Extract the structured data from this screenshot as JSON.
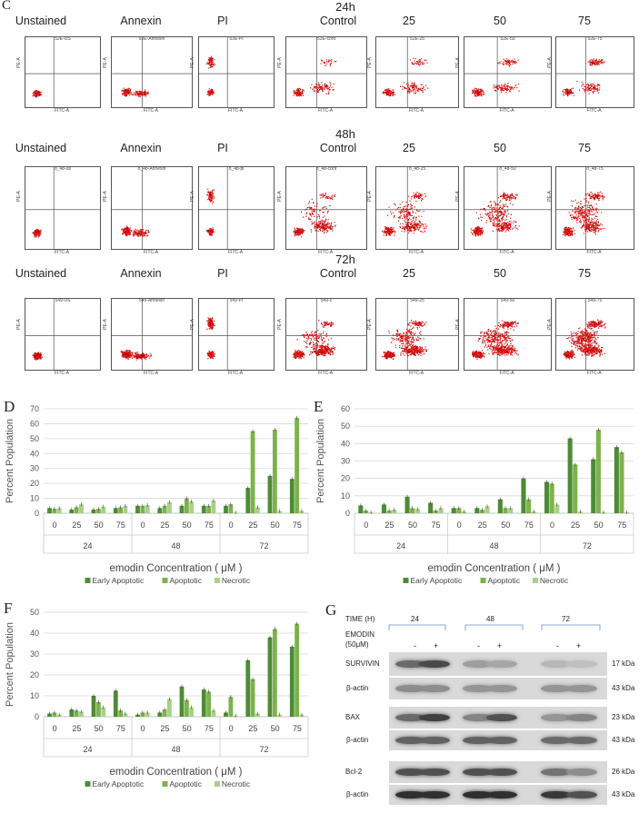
{
  "panel_c": {
    "label": "C",
    "time_rows": [
      {
        "time": "24h",
        "headers": [
          "Unstained",
          "Annexin",
          "PI",
          "Control",
          "25",
          "50",
          "75"
        ],
        "titles": [
          "52E-US",
          "52E-Annexin",
          "52E-PI",
          "52E-cont",
          "52E-25",
          "52E-50",
          "52E-75"
        ]
      },
      {
        "time": "48h",
        "headers": [
          "Unstained",
          "Annexin",
          "PI",
          "Control",
          "25",
          "50",
          "75"
        ],
        "titles": [
          "o_48-us",
          "o_48-Annexin",
          "o_48-pi",
          "o_48-cont",
          "o_48-25",
          "o_48-50",
          "o_48-75"
        ]
      },
      {
        "time": "72h",
        "headers": [
          "Unstained",
          "Annexin",
          "PI",
          "Control",
          "25",
          "50",
          "75"
        ],
        "titles": [
          "549-US",
          "549-Annexin",
          "549-PI",
          "549-c",
          "549-25",
          "549-50",
          "549-75"
        ]
      }
    ],
    "x_axis": "FITC-A",
    "y_axis": "PE-A"
  },
  "chart_data": [
    {
      "id": "D",
      "type": "bar",
      "label": "D",
      "ylabel": "Percent Population",
      "xlabel": "emodin Concentration ( μM )",
      "ylim": [
        0,
        70
      ],
      "ticks": [
        0,
        10,
        20,
        30,
        40,
        50,
        60,
        70
      ],
      "categories": [
        "0",
        "25",
        "50",
        "75",
        "0",
        "25",
        "50",
        "75",
        "0",
        "25",
        "50",
        "75"
      ],
      "groups": [
        "24",
        "48",
        "72"
      ],
      "series": [
        {
          "name": "Early Apoptotic",
          "color": "#4e8b37",
          "values": [
            3.5,
            2.5,
            2.5,
            3.5,
            5,
            3.5,
            5,
            5,
            5,
            17,
            25,
            23
          ]
        },
        {
          "name": "Apoptotic",
          "color": "#7cb34a",
          "values": [
            3,
            4,
            3,
            4,
            5,
            5,
            10,
            5,
            6,
            55,
            56,
            64
          ]
        },
        {
          "name": "Necrotic",
          "color": "#a9cf8a",
          "values": [
            3.5,
            6,
            4.5,
            5,
            5.5,
            7.5,
            8,
            8.5,
            0.5,
            4,
            1.5,
            1.5
          ]
        }
      ]
    },
    {
      "id": "E",
      "type": "bar",
      "label": "E",
      "ylabel": "Percent Population",
      "xlabel": "emodin Concentration ( μM )",
      "ylim": [
        0,
        60
      ],
      "ticks": [
        0,
        10,
        20,
        30,
        40,
        50,
        60
      ],
      "categories": [
        "0",
        "25",
        "50",
        "75",
        "0",
        "25",
        "50",
        "75",
        "0",
        "25",
        "50",
        "75"
      ],
      "groups": [
        "24",
        "48",
        "72"
      ],
      "series": [
        {
          "name": "Early Apoptotic",
          "color": "#4e8b37",
          "values": [
            4.5,
            5,
            9.5,
            6,
            3,
            3,
            8,
            20,
            18,
            43,
            31,
            38
          ]
        },
        {
          "name": "Apoptotic",
          "color": "#7cb34a",
          "values": [
            1.5,
            1.5,
            3,
            1.5,
            3,
            2,
            3,
            8,
            17,
            28,
            48,
            35
          ]
        },
        {
          "name": "Necrotic",
          "color": "#a9cf8a",
          "values": [
            0.5,
            2,
            2.5,
            3,
            1,
            4,
            3,
            1,
            5,
            1,
            0.5,
            0.5
          ]
        }
      ]
    },
    {
      "id": "F",
      "type": "bar",
      "label": "F",
      "ylabel": "Percent Population",
      "xlabel": "emodin Concentration ( μM )",
      "ylim": [
        0,
        50
      ],
      "ticks": [
        0,
        10,
        20,
        30,
        40,
        50
      ],
      "categories": [
        "0",
        "25",
        "50",
        "75",
        "0",
        "25",
        "50",
        "75",
        "0",
        "25",
        "50",
        "75"
      ],
      "groups": [
        "24",
        "48",
        "72"
      ],
      "series": [
        {
          "name": "Early Apoptotic",
          "color": "#4e8b37",
          "values": [
            1.5,
            3.5,
            10,
            12.5,
            1,
            2,
            14.5,
            13,
            2,
            27,
            38,
            33.5
          ]
        },
        {
          "name": "Apoptotic",
          "color": "#7cb34a",
          "values": [
            2,
            3,
            7,
            3,
            2,
            3.5,
            8,
            12,
            9.5,
            18,
            42,
            44.5
          ]
        },
        {
          "name": "Necrotic",
          "color": "#a9cf8a",
          "values": [
            1,
            2.5,
            4.5,
            1.5,
            2,
            8.5,
            4.5,
            3,
            0.5,
            1.5,
            1,
            1
          ]
        }
      ]
    }
  ],
  "panel_g": {
    "label": "G",
    "time_label": "TIME (H)",
    "times": [
      "24",
      "48",
      "72"
    ],
    "emodin_label": "EMODIN",
    "emodin_dose": "(50μM)",
    "signs": [
      "-",
      "+",
      "-",
      "+",
      "-",
      "+"
    ],
    "blots": [
      {
        "name": "SURVIVIN",
        "kda": "17 kDa",
        "intensity": [
          0.55,
          0.75,
          0.25,
          0.2,
          0.1,
          0.05
        ]
      },
      {
        "name": "β-actin",
        "kda": "43 kDa",
        "intensity": [
          0.35,
          0.35,
          0.3,
          0.3,
          0.3,
          0.3
        ]
      },
      {
        "name": "BAX",
        "kda": "23 kDa",
        "intensity": [
          0.55,
          0.8,
          0.4,
          0.7,
          0.3,
          0.4
        ]
      },
      {
        "name": "β-actin",
        "kda": "43 kDa",
        "intensity": [
          0.6,
          0.6,
          0.6,
          0.6,
          0.55,
          0.55
        ]
      },
      {
        "name": "Bcl-2",
        "kda": "26 kDa",
        "intensity": [
          0.7,
          0.7,
          0.7,
          0.7,
          0.5,
          0.35
        ]
      },
      {
        "name": "β-actin",
        "kda": "43 kDa",
        "intensity": [
          0.9,
          0.9,
          0.9,
          0.9,
          0.85,
          0.7
        ]
      }
    ]
  }
}
